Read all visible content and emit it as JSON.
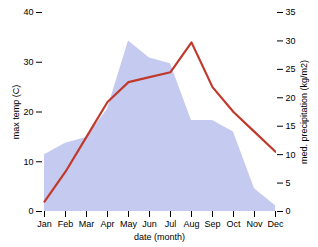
{
  "chart_data": {
    "type": "line",
    "categories": [
      "Jan",
      "Feb",
      "Mar",
      "Apr",
      "May",
      "Jun",
      "Jul",
      "Aug",
      "Sep",
      "Oct",
      "Nov",
      "Dec"
    ],
    "series": [
      {
        "type": "area",
        "color": "#c5cbf0",
        "axis": "y2",
        "values": [
          10,
          12,
          13,
          18,
          30,
          27,
          26,
          16,
          16,
          14,
          4,
          1
        ]
      },
      {
        "type": "line",
        "color": "#c0392b",
        "values": [
          2,
          8,
          15,
          22,
          26,
          27,
          28,
          34,
          25,
          20,
          16,
          12
        ]
      }
    ],
    "xlabel": "date (month)",
    "ylabel": "max temp (C)",
    "y2label": "med. precipitation (kg/m2)",
    "ylim": [
      0,
      40
    ],
    "yticks": [
      0,
      10,
      20,
      30,
      40
    ],
    "y2lim": [
      0,
      35
    ],
    "y2ticks": [
      0,
      5,
      10,
      15,
      20,
      25,
      30,
      35
    ],
    "grid": false
  }
}
